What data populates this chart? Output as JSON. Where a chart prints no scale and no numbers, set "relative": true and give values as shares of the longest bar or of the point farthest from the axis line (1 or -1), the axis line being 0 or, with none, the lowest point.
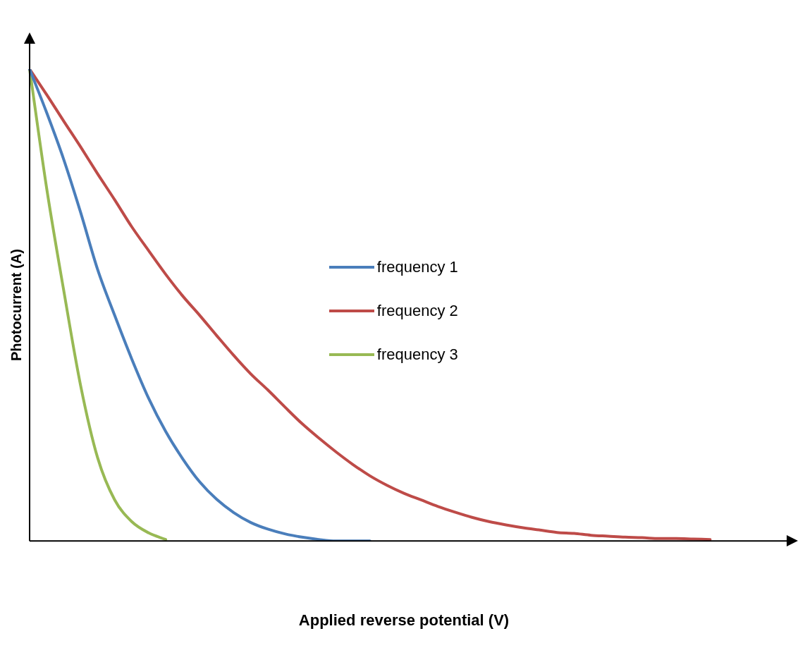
{
  "chart_data": {
    "type": "line",
    "xlabel": "Applied reverse potential (V)",
    "ylabel": "Photocurrent (A)",
    "relative": true,
    "grid": false,
    "legend": "center",
    "marker": "none",
    "line_style": "solid",
    "categories": [
      null,
      null,
      null,
      null,
      null,
      null,
      null,
      null,
      null,
      null,
      null,
      null,
      null,
      null,
      null,
      null,
      null,
      null,
      null,
      null,
      null,
      null,
      null,
      null,
      null,
      null,
      null,
      null,
      null,
      null,
      null,
      null,
      null,
      null,
      null,
      null,
      null,
      null,
      null,
      null,
      null,
      null,
      null,
      null,
      null
    ],
    "series": [
      {
        "name": "frequency 1",
        "color": "#4a7ebb",
        "values": [
          1,
          0.908,
          0.809,
          0.696,
          0.575,
          0.478,
          0.386,
          0.302,
          0.232,
          0.174,
          0.125,
          0.088,
          0.06,
          0.039,
          0.025,
          0.015,
          0.008,
          0.003,
          0,
          0,
          0,
          null,
          null,
          null,
          null,
          null,
          null,
          null,
          null,
          null,
          null,
          null,
          null,
          null,
          null,
          null,
          null,
          null,
          null,
          null,
          null,
          null,
          null,
          null,
          null
        ]
      },
      {
        "name": "frequency 2",
        "color": "#be4b48",
        "values": [
          1,
          0.946,
          0.89,
          0.835,
          0.778,
          0.723,
          0.666,
          0.615,
          0.565,
          0.519,
          0.478,
          0.435,
          0.393,
          0.354,
          0.32,
          0.284,
          0.249,
          0.218,
          0.189,
          0.162,
          0.138,
          0.118,
          0.101,
          0.087,
          0.073,
          0.061,
          0.05,
          0.041,
          0.034,
          0.028,
          0.023,
          0.018,
          0.016,
          0.012,
          0.01,
          0.008,
          0.007,
          0.005,
          0.005,
          0.004,
          0.003,
          null,
          null,
          null,
          null
        ]
      },
      {
        "name": "frequency 3",
        "color": "#98b954",
        "values": [
          1,
          0.748,
          0.532,
          0.329,
          0.176,
          0.087,
          0.041,
          0.017,
          0.003,
          null,
          null,
          null,
          null,
          null,
          null,
          null,
          null,
          null,
          null,
          null,
          null,
          null,
          null,
          null,
          null,
          null,
          null,
          null,
          null,
          null,
          null,
          null,
          null,
          null,
          null,
          null,
          null,
          null,
          null,
          null,
          null,
          null,
          null,
          null,
          null
        ]
      }
    ]
  }
}
